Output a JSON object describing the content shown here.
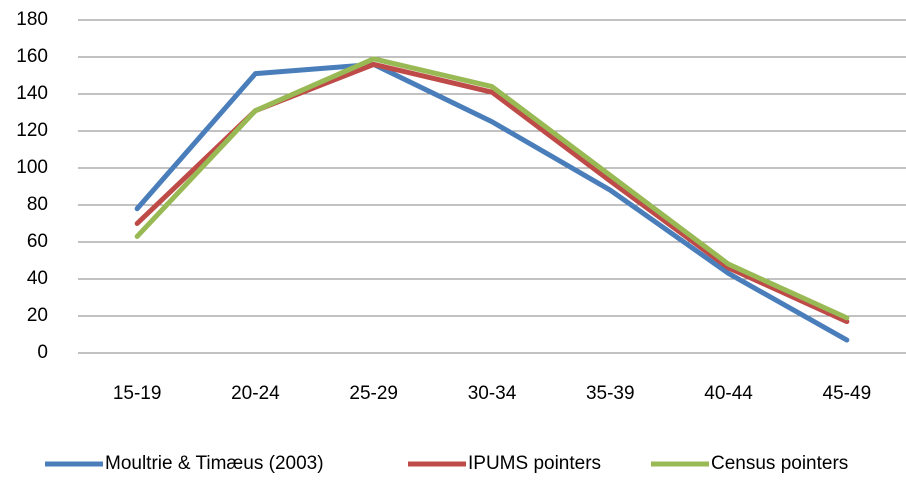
{
  "chart_data": {
    "type": "line",
    "categories": [
      "15-19",
      "20-24",
      "25-29",
      "30-34",
      "35-39",
      "40-44",
      "45-49"
    ],
    "series": [
      {
        "name": "Moultrie & Timæus (2003)",
        "color": "#4a7ebb",
        "values": [
          78,
          151,
          156,
          125,
          88,
          43,
          7
        ]
      },
      {
        "name": "IPUMS pointers",
        "color": "#be4b48",
        "values": [
          70,
          131,
          156,
          141,
          93,
          46,
          17
        ]
      },
      {
        "name": "Census pointers",
        "color": "#98b954",
        "values": [
          63,
          131,
          159,
          144,
          96,
          48,
          19
        ]
      }
    ],
    "ylim": [
      0,
      180
    ],
    "yticks": [
      0,
      20,
      40,
      60,
      80,
      100,
      120,
      140,
      160,
      180
    ],
    "grid": true,
    "legend": "bottom"
  }
}
